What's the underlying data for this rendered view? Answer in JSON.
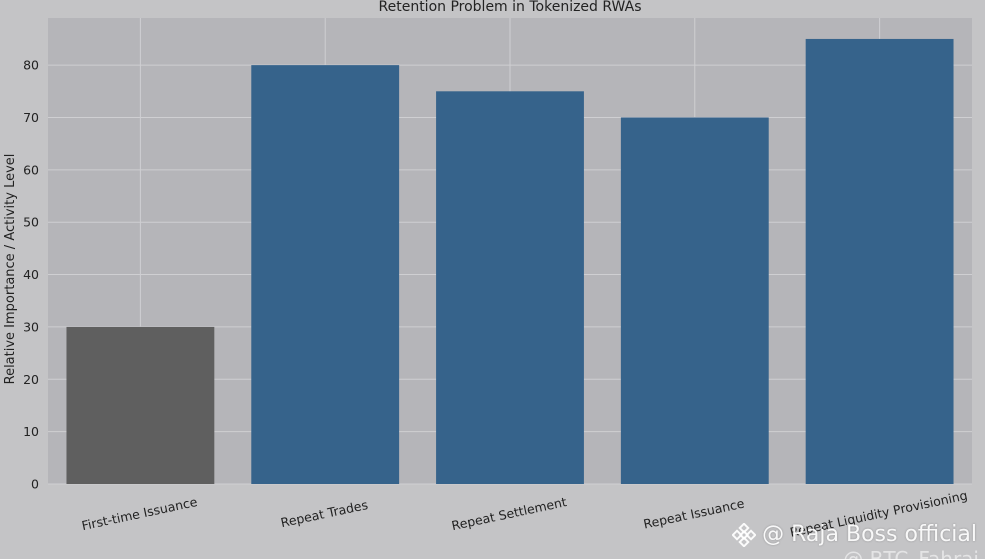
{
  "chart_data": {
    "type": "bar",
    "title": "Retention Problem in Tokenized RWAs",
    "xlabel": "",
    "ylabel": "Relative Importance / Activity Level",
    "categories": [
      "First-time Issuance",
      "Repeat Trades",
      "Repeat Settlement",
      "Repeat Issuance",
      "Repeat Liquidity Provisioning"
    ],
    "values": [
      30,
      80,
      75,
      70,
      85
    ],
    "bar_colors": [
      "#5f5f5f",
      "#36638b",
      "#36638b",
      "#36638b",
      "#36638b"
    ],
    "ylim": [
      0,
      89
    ],
    "yticks": [
      0,
      10,
      20,
      30,
      40,
      50,
      60,
      70,
      80
    ],
    "grid": true,
    "plot_background": "#b5b5b9"
  },
  "watermark": {
    "text": "@ Raja Boss official",
    "subtext": "@ BTC_Fahrai",
    "icon": "binance-diamond-icon"
  }
}
